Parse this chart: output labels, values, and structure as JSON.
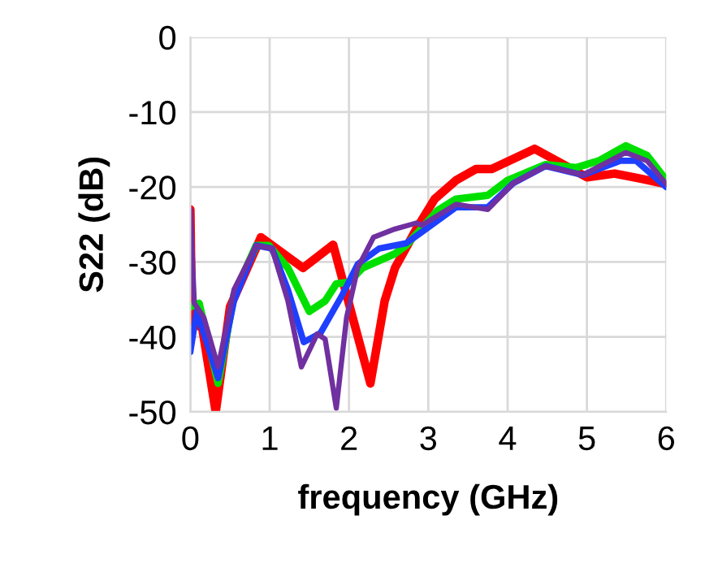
{
  "chart_data": {
    "type": "line",
    "xlabel": "frequency (GHz)",
    "ylabel": "S22 (dB)",
    "xlim": [
      0,
      6
    ],
    "xticks": [
      0,
      1,
      2,
      3,
      4,
      5,
      6
    ],
    "ylim": [
      -50,
      0
    ],
    "yticks": [
      -50,
      -40,
      -30,
      -20,
      -10,
      0
    ],
    "grid": true,
    "marker": "none",
    "line_style": "solid",
    "series": [
      {
        "color": "#ff0000",
        "x": [
          0,
          0.02,
          0.15,
          0.32,
          0.5,
          0.89,
          1.42,
          1.8,
          2.27,
          2.45,
          2.58,
          2.85,
          3.08,
          3.35,
          3.6,
          3.8,
          4.34,
          4.74,
          5.0,
          5.35,
          5.69,
          6.0
        ],
        "values": [
          -23,
          -38,
          -38.8,
          -50,
          -36,
          -26.7,
          -30.8,
          -27.7,
          -46.2,
          -35.2,
          -30.8,
          -25.6,
          -21.6,
          -19.1,
          -17.6,
          -17.6,
          -14.9,
          -17.2,
          -18.7,
          -18.2,
          -18.9,
          -19.6
        ]
      },
      {
        "color": "#00e000",
        "x": [
          0,
          0.11,
          0.35,
          0.55,
          0.83,
          0.99,
          1.23,
          1.5,
          1.7,
          1.84,
          2.0,
          2.17,
          2.58,
          2.72,
          3.12,
          3.35,
          3.75,
          4.0,
          4.48,
          4.87,
          5.15,
          5.49,
          5.76,
          6.0
        ],
        "values": [
          -36,
          -35.5,
          -46.2,
          -34.4,
          -27.8,
          -27.8,
          -30.8,
          -36.6,
          -35.2,
          -32.9,
          -32.7,
          -30.8,
          -28.9,
          -27.8,
          -23.1,
          -21.6,
          -21.1,
          -19.1,
          -17.0,
          -17.4,
          -16.5,
          -14.5,
          -15.8,
          -19.1
        ]
      },
      {
        "color": "#1f3fff",
        "x": [
          0,
          0.08,
          0.35,
          0.55,
          0.83,
          1.03,
          1.23,
          1.43,
          1.64,
          1.91,
          2.11,
          2.38,
          2.72,
          2.92,
          3.35,
          3.75,
          4.07,
          4.48,
          4.95,
          5.42,
          5.62,
          6.0
        ],
        "values": [
          -42,
          -36.6,
          -45.5,
          -35.2,
          -27.8,
          -28.2,
          -33.7,
          -40.7,
          -39.5,
          -34.5,
          -30.3,
          -28.2,
          -27.5,
          -26,
          -22.7,
          -22.7,
          -19.5,
          -17.2,
          -18.4,
          -16.5,
          -16.5,
          -20
        ]
      },
      {
        "color": "#7030a0",
        "x": [
          0,
          0.05,
          0.17,
          0.35,
          0.55,
          0.83,
          1.03,
          1.23,
          1.4,
          1.6,
          1.7,
          1.84,
          1.97,
          2.11,
          2.31,
          2.58,
          2.85,
          2.92,
          3.35,
          3.75,
          4.07,
          4.48,
          4.95,
          5.49,
          5.76,
          6.0
        ],
        "values": [
          -23,
          -35.5,
          -37.4,
          -44,
          -33.7,
          -27.8,
          -28.2,
          -35.2,
          -44,
          -39.6,
          -40.3,
          -49.5,
          -37.4,
          -30.8,
          -26.7,
          -25.6,
          -24.8,
          -25.1,
          -22.3,
          -23,
          -19.5,
          -17.2,
          -18.4,
          -15.4,
          -16.5,
          -19.6
        ]
      }
    ]
  }
}
